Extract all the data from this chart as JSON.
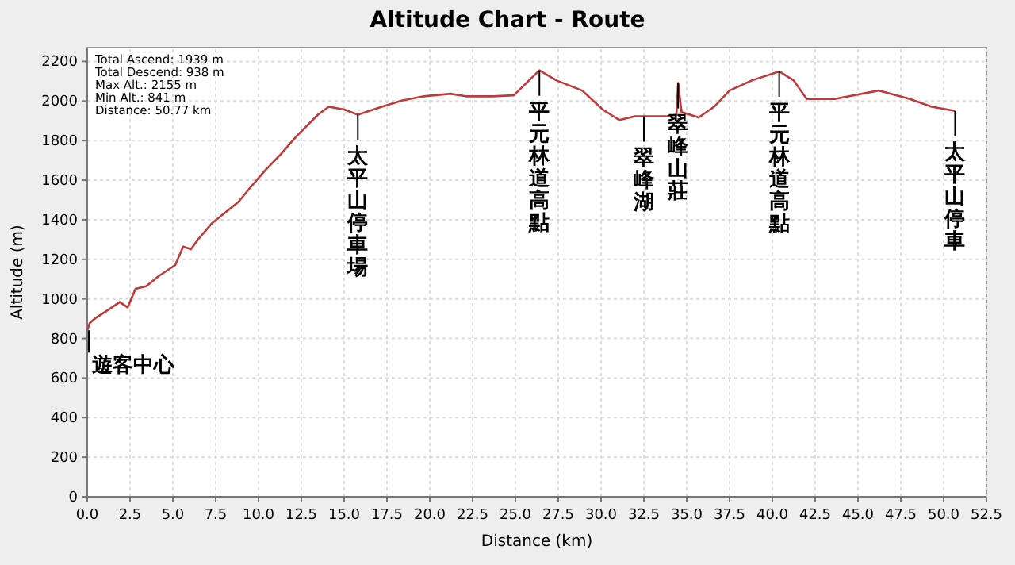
{
  "chart_data": {
    "type": "line",
    "title": "Altitude Chart - Route",
    "xlabel": "Distance (km)",
    "ylabel": "Altitude (m)",
    "x": [
      0,
      0.14,
      0.5,
      1.44,
      1.9,
      2.36,
      2.82,
      3.44,
      4.2,
      5.14,
      5.6,
      6.06,
      6.5,
      7.3,
      8.84,
      9.46,
      10.4,
      11.3,
      12.24,
      13.47,
      14.1,
      15.0,
      15.8,
      17.2,
      18.4,
      19.65,
      21.2,
      22.1,
      23.66,
      24.9,
      26.4,
      27.4,
      28.9,
      30.1,
      31.06,
      31.98,
      33.9,
      34.4,
      34.5,
      34.7,
      35.7,
      36.6,
      37.5,
      38.8,
      40.4,
      41.25,
      42.0,
      43.7,
      46.2,
      48.0,
      49.3,
      50.67
    ],
    "series": [
      {
        "color": "#c0393b",
        "values": [
          841,
          877,
          904,
          957,
          984,
          957,
          1051,
          1064,
          1117,
          1171,
          1264,
          1251,
          1304,
          1384,
          1491,
          1557,
          1651,
          1731,
          1824,
          1931,
          1971,
          1957,
          1931,
          1971,
          2003,
          2024,
          2037,
          2024,
          2024,
          2029,
          2155,
          2104,
          2053,
          1957,
          1904,
          1923,
          1923,
          1931,
          2091,
          1944,
          1917,
          1971,
          2053,
          2104,
          2150,
          2104,
          2011,
          2011,
          2053,
          2011,
          1971,
          1950
        ]
      }
    ],
    "xlim": [
      0,
      52.5
    ],
    "xticks": [
      {
        "value": 0,
        "label": "0.0"
      },
      {
        "value": 2.5,
        "label": "2.5"
      },
      {
        "value": 5,
        "label": "5.0"
      },
      {
        "value": 7.5,
        "label": "7.5"
      },
      {
        "value": 10,
        "label": "10.0"
      },
      {
        "value": 12.5,
        "label": "12.5"
      },
      {
        "value": 15,
        "label": "15.0"
      },
      {
        "value": 17.5,
        "label": "17.5"
      },
      {
        "value": 20,
        "label": "20.0"
      },
      {
        "value": 22.5,
        "label": "22.5"
      },
      {
        "value": 25,
        "label": "25.0"
      },
      {
        "value": 27.5,
        "label": "27.5"
      },
      {
        "value": 30,
        "label": "30.0"
      },
      {
        "value": 32.5,
        "label": "32.5"
      },
      {
        "value": 35,
        "label": "35.0"
      },
      {
        "value": 37.5,
        "label": "37.5"
      },
      {
        "value": 40,
        "label": "40.0"
      },
      {
        "value": 42.5,
        "label": "42.5"
      },
      {
        "value": 45,
        "label": "45.0"
      },
      {
        "value": 47.5,
        "label": "47.5"
      },
      {
        "value": 50,
        "label": "50.0"
      },
      {
        "value": 52.5,
        "label": "52.5"
      }
    ],
    "ylim": [
      0,
      2270
    ],
    "yticks": [
      0,
      200,
      400,
      600,
      800,
      1000,
      1200,
      1400,
      1600,
      1800,
      2000,
      2200
    ],
    "grid": true,
    "line_style": "solid",
    "marker": "none",
    "annotations": [
      "Total Ascend: 1939 m",
      "Total Descend: 938 m",
      "Max Alt.: 2155 m",
      "Min Alt.: 841 m",
      "Distance: 50.77 km",
      {
        "text": "遊客中心",
        "x": 0,
        "y": 841
      },
      {
        "text": "太平山停車場",
        "x": 15.8,
        "y": 1931
      },
      {
        "text": "平元林道高點",
        "x": 26.4,
        "y": 2155
      },
      {
        "text": "翠峰湖",
        "x": 32.5,
        "y": 1923
      },
      {
        "text": "翠峰山莊",
        "x": 34.5,
        "y": 2091
      },
      {
        "text": "平元林道高點",
        "x": 40.4,
        "y": 2150
      },
      {
        "text": "太平山停車",
        "x": 50.67,
        "y": 1950
      }
    ]
  }
}
